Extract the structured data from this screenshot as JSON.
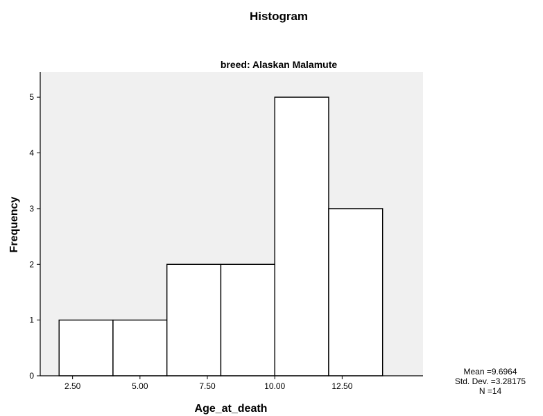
{
  "chart_data": {
    "type": "bar",
    "title": "Histogram",
    "subtitle": "breed: Alaskan Malamute",
    "xlabel": "Age_at_death",
    "ylabel": "Frequency",
    "bins": [
      {
        "start": 2.0,
        "end": 4.0,
        "count": 1
      },
      {
        "start": 4.0,
        "end": 6.0,
        "count": 1
      },
      {
        "start": 6.0,
        "end": 8.0,
        "count": 2
      },
      {
        "start": 8.0,
        "end": 10.0,
        "count": 2
      },
      {
        "start": 10.0,
        "end": 12.0,
        "count": 5
      },
      {
        "start": 12.0,
        "end": 14.0,
        "count": 3
      }
    ],
    "xlim": [
      1.3,
      15.5
    ],
    "ylim": [
      0,
      5.45
    ],
    "x_ticks": [
      2.5,
      5.0,
      7.5,
      10.0,
      12.5
    ],
    "x_tick_labels": [
      "2.50",
      "5.00",
      "7.50",
      "10.00",
      "12.50"
    ],
    "y_ticks": [
      0,
      1,
      2,
      3,
      4,
      5
    ],
    "y_tick_labels": [
      "0",
      "1",
      "2",
      "3",
      "4",
      "5"
    ],
    "grid": false,
    "colors": {
      "plot_background": "#f0f0f0",
      "bar_fill": "#ffffff",
      "bar_edge": "#000000"
    },
    "stats": {
      "mean": "Mean =9.6964",
      "std_dev": "Std. Dev. =3.28175",
      "n": "N =14"
    }
  }
}
